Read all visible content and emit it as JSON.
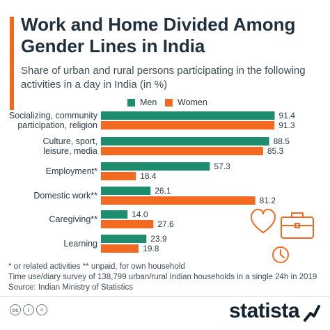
{
  "header": {
    "title": "Work and Home Divided Among Gender Lines in India",
    "subtitle": "Share of urban and rural persons participating in the following activities in a day in India (in %)"
  },
  "colors": {
    "accent": "#f26a22",
    "men": "#1e8c6e",
    "women": "#f26a22",
    "label": "#2b3a45"
  },
  "chart_data": {
    "type": "bar",
    "orientation": "horizontal",
    "categories": [
      "Socializing, community participation, religion",
      "Culture, sport, leisure, media",
      "Employment*",
      "Domestic work**",
      "Caregiving**",
      "Learning"
    ],
    "series": [
      {
        "name": "Men",
        "values": [
          91.4,
          88.5,
          57.3,
          26.1,
          14.0,
          23.9
        ]
      },
      {
        "name": "Women",
        "values": [
          91.3,
          85.3,
          18.4,
          81.2,
          27.6,
          19.8
        ]
      }
    ],
    "value_labels": [
      [
        "91.4",
        "88.5",
        "57.3",
        "26.1",
        "14.0",
        "23.9"
      ],
      [
        "91.3",
        "85.3",
        "18.4",
        "81.2",
        "27.6",
        "19.8"
      ]
    ],
    "xlim": [
      0,
      100
    ],
    "grid": false,
    "legend_position": "top"
  },
  "footnotes": [
    "* or related activities    ** unpaid, for own household",
    "Time use/diary survey of 138,799 urban/rural Indian households in a single 24h in 2019",
    "Source: Indian Ministry of Statistics"
  ],
  "footer": {
    "brand": "statista"
  },
  "icons": [
    "heart-icon",
    "briefcase-icon",
    "clock-icon",
    "cc-icon",
    "cc-by-icon",
    "cc-nd-icon",
    "statista-logo-icon"
  ]
}
